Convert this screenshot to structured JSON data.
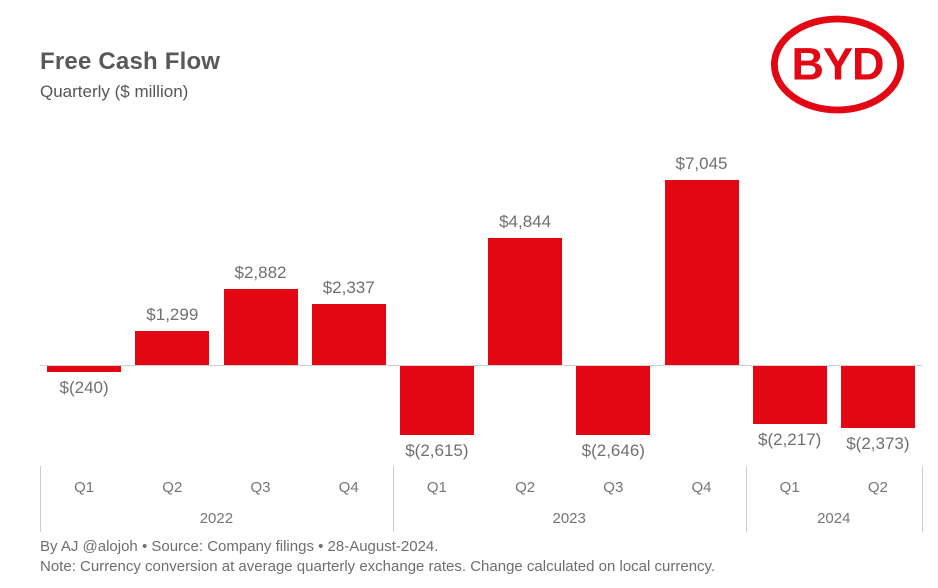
{
  "header": {
    "title": "Free Cash Flow",
    "subtitle": "Quarterly ($ million)",
    "logo_text": "BYD",
    "brand_color": "#E30613"
  },
  "chart_data": {
    "type": "bar",
    "title": "Free Cash Flow",
    "subtitle": "Quarterly ($ million)",
    "unit": "$ million",
    "categories": [
      "Q1 2022",
      "Q2 2022",
      "Q3 2022",
      "Q4 2022",
      "Q1 2023",
      "Q2 2023",
      "Q3 2023",
      "Q4 2023",
      "Q1 2024",
      "Q2 2024"
    ],
    "quarter_labels": [
      "Q1",
      "Q2",
      "Q3",
      "Q4",
      "Q1",
      "Q2",
      "Q3",
      "Q4",
      "Q1",
      "Q2"
    ],
    "values": [
      -240,
      1299,
      2882,
      2337,
      -2615,
      4844,
      -2646,
      7045,
      -2217,
      -2373
    ],
    "data_labels": [
      "$(240)",
      "$1,299",
      "$2,882",
      "$2,337",
      "$(2,615)",
      "$4,844",
      "$(2,646)",
      "$7,045",
      "$(2,217)",
      "$(2,373)"
    ],
    "groups": [
      {
        "year": "2022",
        "span": 4
      },
      {
        "year": "2023",
        "span": 4
      },
      {
        "year": "2024",
        "span": 2
      }
    ],
    "bar_color": "#E30613",
    "label_color": "#6f7072",
    "axis_color": "#757575",
    "ylim": [
      -2900,
      7200
    ],
    "grid": false,
    "legend": false
  },
  "footer": {
    "byline": "By AJ @alojoh • Source: Company filings • 28-August-2024.",
    "note": "Note: Currency conversion at average quarterly exchange rates. Change calculated on local currency."
  }
}
